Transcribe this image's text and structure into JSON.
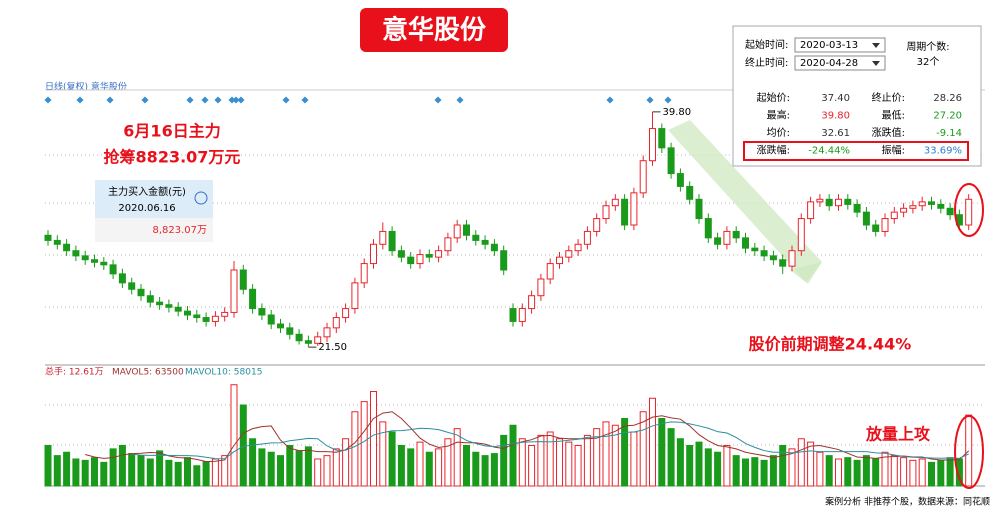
{
  "header": {
    "title": "意华股份",
    "chart_label": "日线(复权) 意华股份",
    "footer": "案例分析 非推荐个股，数据来源：同花顺"
  },
  "note": {
    "line1": "6月16日主力",
    "line2": "抢筹8823.07万元",
    "box_title": "主力买入金额(元)",
    "box_date": "2020.06.16",
    "box_value": "8,823.07万"
  },
  "info_panel": {
    "start_label": "起始时间:",
    "start": "2020-03-13",
    "end_label": "终止时间:",
    "end": "2020-04-28",
    "count_label": "周期个数:",
    "count": "32个",
    "rows": [
      [
        "起始价:",
        "37.40",
        "终止价:",
        "28.26"
      ],
      [
        "最高:",
        "39.80",
        "最低:",
        "27.20"
      ],
      [
        "均价:",
        "32.61",
        "涨跌值:",
        "-9.14"
      ],
      [
        "涨跌幅:",
        "-24.44%",
        "振幅:",
        "33.69%"
      ]
    ]
  },
  "chart_data": {
    "type": "candlestick",
    "annotations": {
      "high": "39.80",
      "low": "21.50",
      "adjust": "股价前期调整24.44%",
      "volume_up": "放量上攻"
    },
    "volume_header": {
      "total": "总手: 12.61万",
      "mavol5": "MAVOL5: 63500",
      "mavol10": "MAVOL10: 58015"
    },
    "up_color": "#e8242c",
    "down_color": "#1a9a1a",
    "ylim": [
      20.5,
      41.5
    ],
    "vol_ylim": [
      0,
      160000
    ],
    "open": [
      30.2,
      29.8,
      29.5,
      29.0,
      28.6,
      28.3,
      28.1,
      27.9,
      27.2,
      26.5,
      26.0,
      25.5,
      25.0,
      24.8,
      24.6,
      24.3,
      24.0,
      23.8,
      23.5,
      23.9,
      24.2,
      27.5,
      26.0,
      24.5,
      24.0,
      23.3,
      23.0,
      22.5,
      22.0,
      21.8,
      22.3,
      23.0,
      23.8,
      24.5,
      26.5,
      28.0,
      29.5,
      30.5,
      29.0,
      28.5,
      28.0,
      28.7,
      28.5,
      29.0,
      30.0,
      31.0,
      30.2,
      29.8,
      29.5,
      29.0,
      24.5,
      23.5,
      24.5,
      25.5,
      26.8,
      28.0,
      28.5,
      29.0,
      29.5,
      30.5,
      31.5,
      32.5,
      33.0,
      31.0,
      33.5,
      36.0,
      38.5,
      37.0,
      35.0,
      34.0,
      33.0,
      31.5,
      30.0,
      29.5,
      30.5,
      30.0,
      29.2,
      29.0,
      28.6,
      28.3,
      27.8,
      29.0,
      31.5,
      32.8,
      33.0,
      32.5,
      33.0,
      32.6,
      32.0,
      31.0,
      30.5,
      31.5,
      32.0,
      32.3,
      32.5,
      32.8,
      32.6,
      32.3,
      31.8,
      31.0
    ],
    "high": [
      30.6,
      30.2,
      29.9,
      29.4,
      29.0,
      28.7,
      28.5,
      28.3,
      27.6,
      26.9,
      26.4,
      25.9,
      25.4,
      25.2,
      25.0,
      24.7,
      24.4,
      24.2,
      24.3,
      24.6,
      28.2,
      27.9,
      26.4,
      24.9,
      24.4,
      23.7,
      23.4,
      22.9,
      22.4,
      22.7,
      23.4,
      24.2,
      24.9,
      26.9,
      28.4,
      29.9,
      31.2,
      30.9,
      29.4,
      28.9,
      29.1,
      29.1,
      29.4,
      30.4,
      31.4,
      31.4,
      30.6,
      30.2,
      29.9,
      29.4,
      24.9,
      24.9,
      25.9,
      27.2,
      28.4,
      28.9,
      29.4,
      29.9,
      30.9,
      31.9,
      32.9,
      33.4,
      33.4,
      33.9,
      36.4,
      39.8,
      38.9,
      37.4,
      35.4,
      34.4,
      33.4,
      31.9,
      30.4,
      30.9,
      30.9,
      30.4,
      29.6,
      29.4,
      29.0,
      28.7,
      29.4,
      31.9,
      33.2,
      33.4,
      33.4,
      33.4,
      33.4,
      33.0,
      32.4,
      31.4,
      31.9,
      32.4,
      32.7,
      32.9,
      33.2,
      33.2,
      33.0,
      32.7,
      32.2,
      33.4
    ],
    "low": [
      29.4,
      29.1,
      28.6,
      28.2,
      27.9,
      27.7,
      27.5,
      26.8,
      26.1,
      25.6,
      25.1,
      24.6,
      24.4,
      24.2,
      23.9,
      23.6,
      23.4,
      23.1,
      23.1,
      23.5,
      23.8,
      25.6,
      24.1,
      23.6,
      22.9,
      22.6,
      22.1,
      21.7,
      21.5,
      21.6,
      21.9,
      22.6,
      23.4,
      24.1,
      26.1,
      27.6,
      29.1,
      28.6,
      28.1,
      27.6,
      27.6,
      28.1,
      28.1,
      28.6,
      29.6,
      29.8,
      29.4,
      29.1,
      28.6,
      27.1,
      23.1,
      23.1,
      24.1,
      25.1,
      26.4,
      27.6,
      28.1,
      28.6,
      29.1,
      30.1,
      31.1,
      32.1,
      30.6,
      30.6,
      33.1,
      35.6,
      36.6,
      34.6,
      33.6,
      32.6,
      31.1,
      29.6,
      29.1,
      29.1,
      29.6,
      28.8,
      28.6,
      28.2,
      27.9,
      27.2,
      27.4,
      28.6,
      31.1,
      32.4,
      32.1,
      32.1,
      32.2,
      31.6,
      30.6,
      30.1,
      30.1,
      31.1,
      31.6,
      31.9,
      32.1,
      32.2,
      31.9,
      31.4,
      30.6,
      30.6
    ],
    "close": [
      29.8,
      29.5,
      29.0,
      28.6,
      28.3,
      28.1,
      27.9,
      27.2,
      26.5,
      26.0,
      25.5,
      25.0,
      24.8,
      24.6,
      24.3,
      24.0,
      23.8,
      23.5,
      23.9,
      24.2,
      27.5,
      26.0,
      24.5,
      24.0,
      23.3,
      23.0,
      22.5,
      22.0,
      21.8,
      22.3,
      23.0,
      23.8,
      24.5,
      26.5,
      28.0,
      29.5,
      30.5,
      29.0,
      28.5,
      28.0,
      28.7,
      28.5,
      29.0,
      30.0,
      31.0,
      30.2,
      29.8,
      29.5,
      29.0,
      27.5,
      23.5,
      24.5,
      25.5,
      26.8,
      28.0,
      28.5,
      29.0,
      29.5,
      30.5,
      31.5,
      32.5,
      33.0,
      31.0,
      33.5,
      36.0,
      38.5,
      37.0,
      35.0,
      34.0,
      33.0,
      31.5,
      30.0,
      29.5,
      30.5,
      30.0,
      29.2,
      29.0,
      28.6,
      28.3,
      27.8,
      29.0,
      31.5,
      32.8,
      33.0,
      32.5,
      33.0,
      32.6,
      32.0,
      31.0,
      30.5,
      31.5,
      32.0,
      32.3,
      32.5,
      32.8,
      32.6,
      32.3,
      31.8,
      31.0,
      33.0
    ],
    "volume": [
      60000,
      45000,
      50000,
      40000,
      38000,
      42000,
      35000,
      55000,
      60000,
      48000,
      45000,
      40000,
      52000,
      38000,
      35000,
      42000,
      30000,
      36000,
      40000,
      45000,
      150000,
      120000,
      70000,
      55000,
      50000,
      45000,
      60000,
      52000,
      58000,
      40000,
      45000,
      55000,
      70000,
      110000,
      125000,
      140000,
      95000,
      80000,
      60000,
      55000,
      65000,
      50000,
      55000,
      70000,
      85000,
      60000,
      50000,
      45000,
      48000,
      75000,
      90000,
      70000,
      60000,
      75000,
      80000,
      70000,
      65000,
      60000,
      75000,
      85000,
      95000,
      90000,
      100000,
      80000,
      110000,
      130000,
      100000,
      85000,
      70000,
      60000,
      65000,
      55000,
      50000,
      60000,
      45000,
      40000,
      42000,
      38000,
      45000,
      60000,
      55000,
      70000,
      65000,
      50000,
      45000,
      40000,
      42000,
      38000,
      45000,
      40000,
      50000,
      45000,
      42000,
      38000,
      40000,
      35000,
      38000,
      42000,
      40000,
      105000
    ]
  }
}
